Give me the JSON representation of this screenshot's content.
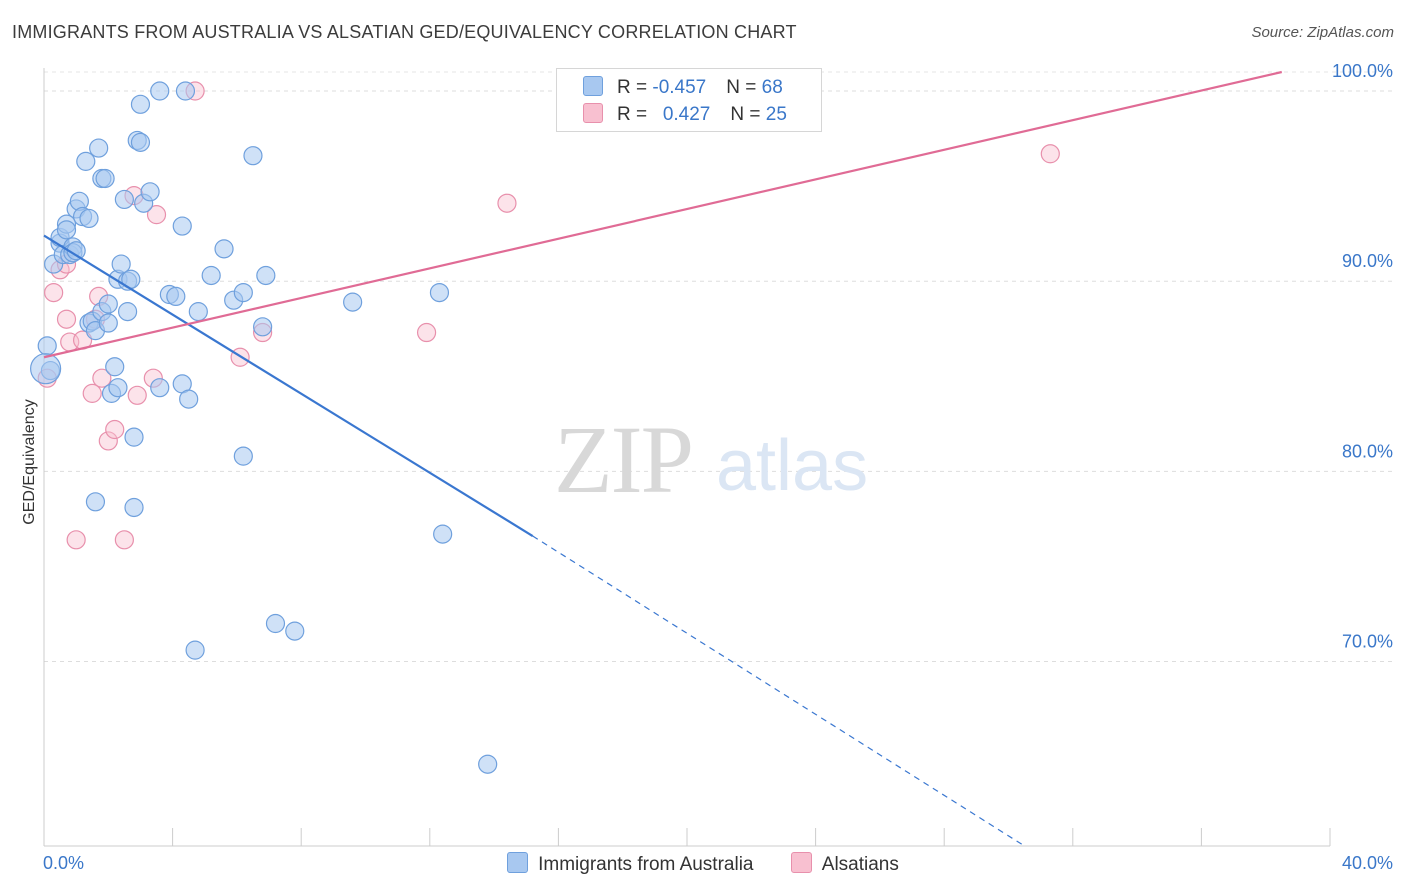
{
  "title": "IMMIGRANTS FROM AUSTRALIA VS ALSATIAN GED/EQUIVALENCY CORRELATION CHART",
  "source": "Source: ZipAtlas.com",
  "watermark": {
    "zip": "ZIP",
    "atlas": "atlas"
  },
  "legend": {
    "rows": [
      {
        "r_label": "R = ",
        "r_value": "-0.457",
        "n_label": "N = ",
        "n_value": "68",
        "color": "#a8c8f0",
        "border": "#6fa0dd"
      },
      {
        "r_label": "R = ",
        "r_value": "0.427",
        "n_label": "N = ",
        "n_value": "25",
        "color": "#f8c0d0",
        "border": "#e890ac"
      }
    ]
  },
  "chart_data": {
    "type": "scatter",
    "title": "IMMIGRANTS FROM AUSTRALIA VS ALSATIAN GED/EQUIVALENCY CORRELATION CHART",
    "xlabel": "",
    "ylabel": "GED/Equivalency",
    "xlim": [
      0,
      40
    ],
    "ylim": [
      60.3,
      101
    ],
    "x_tick_labels": [
      "0.0%",
      "40.0%"
    ],
    "y_ticks": [
      {
        "value": 100,
        "label": "100.0%"
      },
      {
        "value": 90,
        "label": "90.0%"
      },
      {
        "value": 80,
        "label": "80.0%"
      },
      {
        "value": 70,
        "label": "70.0%"
      }
    ],
    "grid": true,
    "legend_position": "top-center",
    "series": [
      {
        "name": "Immigrants from Australia",
        "color": "#a8c8f0",
        "stroke": "#6fa0dd",
        "line_color": "#3a77d0",
        "trend": {
          "x0": 0,
          "y0": 92.4,
          "x1": 15.2,
          "y1": 76.6,
          "dash_to_x": 30.5,
          "dash_to_y": 60.3
        },
        "points": [
          [
            0.1,
            86.6
          ],
          [
            0.2,
            85.3
          ],
          [
            0.3,
            90.9
          ],
          [
            0.5,
            92.0
          ],
          [
            0.5,
            92.3
          ],
          [
            0.6,
            91.4
          ],
          [
            0.7,
            93.0
          ],
          [
            0.7,
            92.7
          ],
          [
            0.8,
            91.4
          ],
          [
            0.9,
            91.8
          ],
          [
            0.9,
            91.5
          ],
          [
            1.0,
            91.6
          ],
          [
            1.0,
            93.8
          ],
          [
            1.1,
            94.2
          ],
          [
            1.2,
            93.4
          ],
          [
            1.3,
            96.3
          ],
          [
            1.4,
            93.3
          ],
          [
            1.4,
            87.8
          ],
          [
            1.5,
            87.9
          ],
          [
            1.6,
            87.4
          ],
          [
            1.6,
            78.4
          ],
          [
            1.7,
            97.0
          ],
          [
            1.8,
            95.4
          ],
          [
            1.8,
            88.4
          ],
          [
            1.9,
            95.4
          ],
          [
            2.0,
            87.8
          ],
          [
            2.0,
            88.8
          ],
          [
            2.1,
            84.1
          ],
          [
            2.2,
            85.5
          ],
          [
            2.3,
            84.4
          ],
          [
            2.3,
            90.1
          ],
          [
            2.4,
            90.9
          ],
          [
            2.5,
            94.3
          ],
          [
            2.6,
            90.0
          ],
          [
            2.6,
            88.4
          ],
          [
            2.7,
            90.1
          ],
          [
            2.8,
            78.1
          ],
          [
            2.8,
            81.8
          ],
          [
            2.9,
            97.4
          ],
          [
            3.0,
            97.3
          ],
          [
            3.0,
            99.3
          ],
          [
            3.1,
            94.1
          ],
          [
            3.3,
            94.7
          ],
          [
            3.6,
            84.4
          ],
          [
            3.6,
            100.0
          ],
          [
            3.9,
            89.3
          ],
          [
            4.1,
            89.2
          ],
          [
            4.3,
            84.6
          ],
          [
            4.3,
            92.9
          ],
          [
            4.4,
            100.0
          ],
          [
            4.5,
            83.8
          ],
          [
            4.7,
            70.6
          ],
          [
            4.8,
            88.4
          ],
          [
            5.2,
            90.3
          ],
          [
            5.6,
            91.7
          ],
          [
            5.9,
            89.0
          ],
          [
            6.2,
            89.4
          ],
          [
            6.5,
            96.6
          ],
          [
            6.2,
            80.8
          ],
          [
            6.8,
            87.6
          ],
          [
            6.9,
            90.3
          ],
          [
            7.2,
            72.0
          ],
          [
            7.8,
            71.6
          ],
          [
            9.6,
            88.9
          ],
          [
            12.3,
            89.4
          ],
          [
            12.4,
            76.7
          ],
          [
            13.8,
            64.6
          ],
          [
            0.05,
            85.4
          ]
        ]
      },
      {
        "name": "Alsatians",
        "color": "#f8c0d0",
        "stroke": "#e890ac",
        "line_color": "#e06b95",
        "trend": {
          "x0": 0,
          "y0": 86.0,
          "x1": 38.5,
          "y1": 101.0
        },
        "points": [
          [
            0.1,
            84.9
          ],
          [
            0.3,
            89.4
          ],
          [
            0.5,
            90.6
          ],
          [
            0.7,
            90.9
          ],
          [
            0.7,
            88.0
          ],
          [
            0.8,
            86.8
          ],
          [
            1.0,
            76.4
          ],
          [
            1.2,
            86.9
          ],
          [
            1.5,
            84.1
          ],
          [
            1.6,
            88.0
          ],
          [
            1.7,
            89.2
          ],
          [
            1.8,
            84.9
          ],
          [
            2.0,
            81.6
          ],
          [
            2.2,
            82.2
          ],
          [
            2.5,
            76.4
          ],
          [
            2.8,
            94.5
          ],
          [
            2.9,
            84.0
          ],
          [
            3.4,
            84.9
          ],
          [
            3.5,
            93.5
          ],
          [
            4.7,
            100.0
          ],
          [
            6.1,
            86.0
          ],
          [
            6.8,
            87.3
          ],
          [
            11.9,
            87.3
          ],
          [
            14.4,
            94.1
          ],
          [
            31.3,
            96.7
          ]
        ]
      }
    ]
  }
}
